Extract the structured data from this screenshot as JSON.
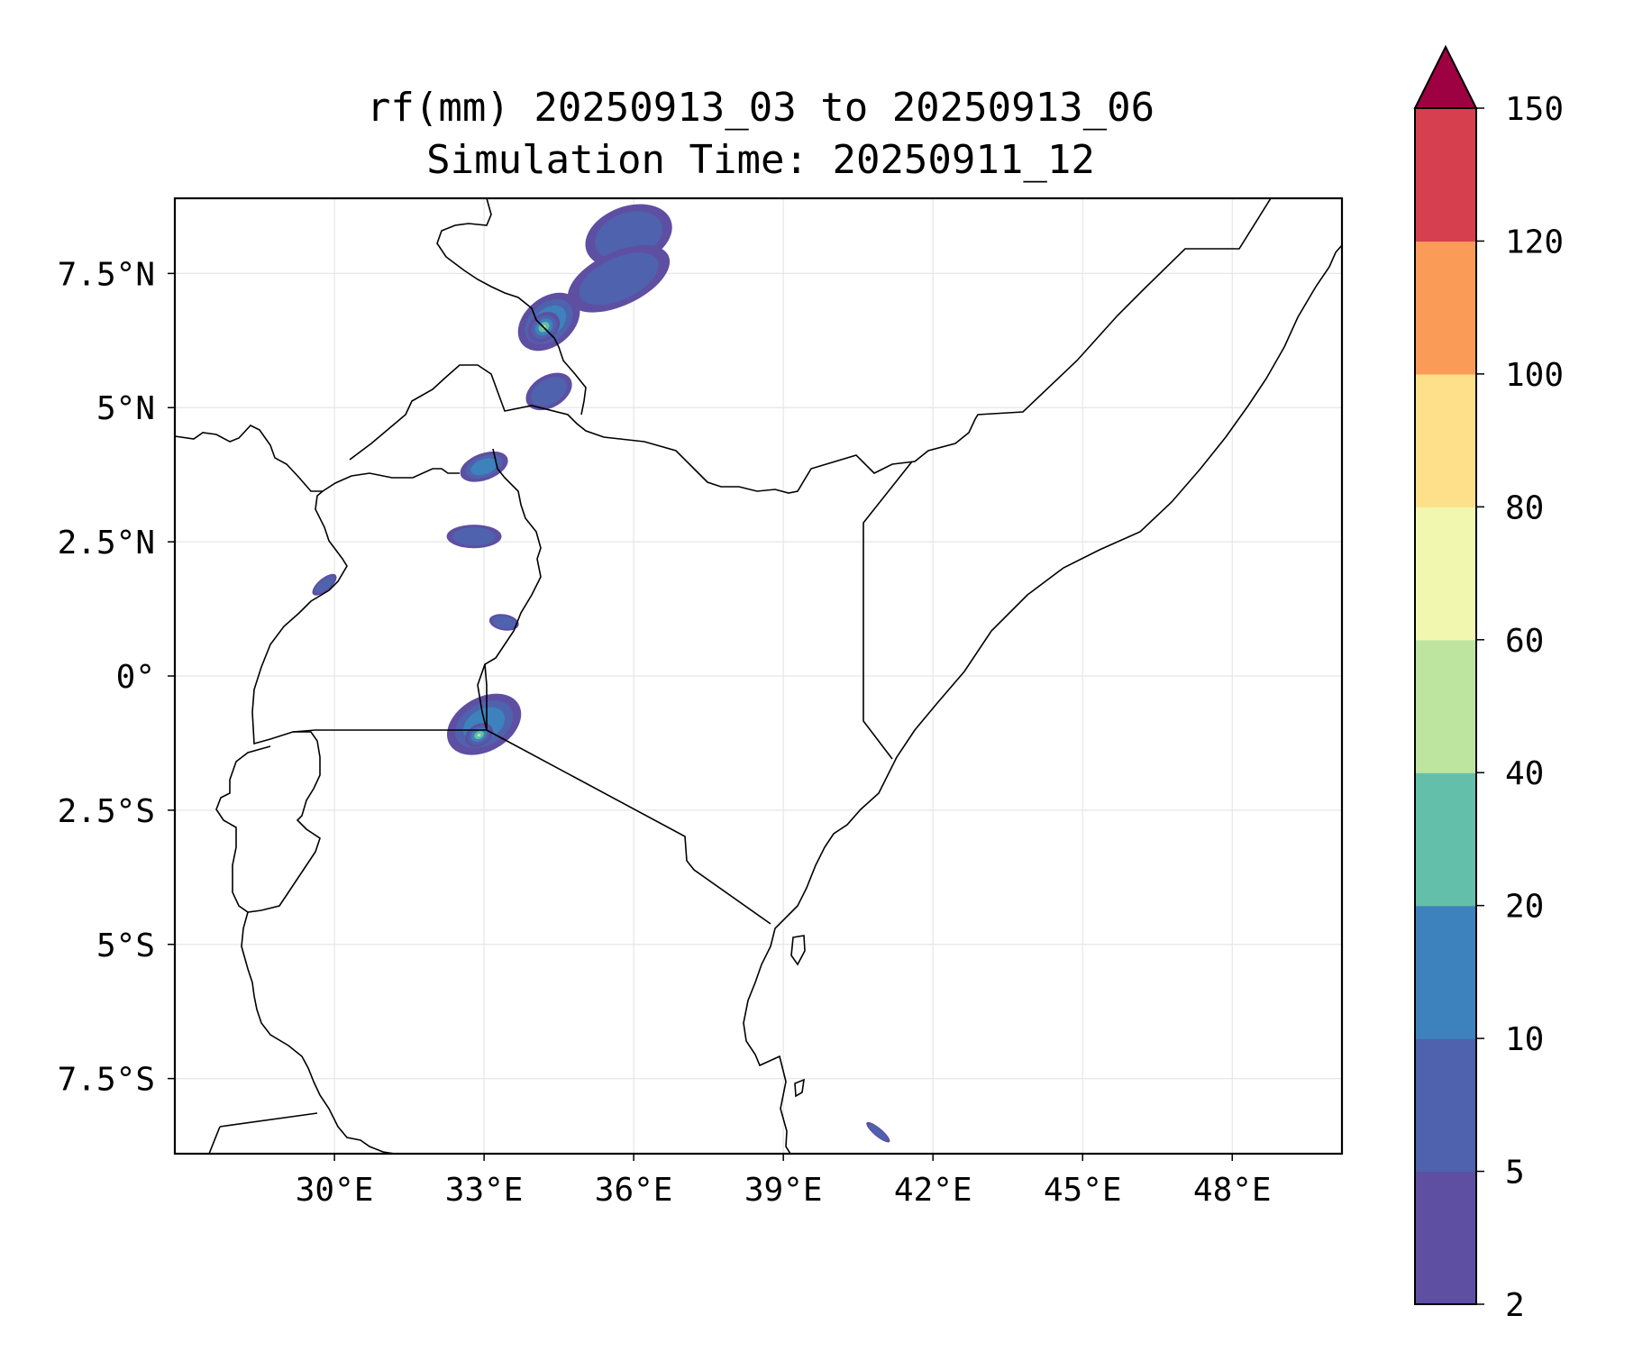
{
  "title": {
    "line1": "rf(mm) 20250913_03 to 20250913_06",
    "line2": "Simulation Time: 20250911_12"
  },
  "map": {
    "lon_range": [
      26.8,
      50.2
    ],
    "lat_range": [
      -8.9,
      8.9
    ],
    "lon_ticks": [
      {
        "value": 30,
        "label": "30°E"
      },
      {
        "value": 33,
        "label": "33°E"
      },
      {
        "value": 36,
        "label": "36°E"
      },
      {
        "value": 39,
        "label": "39°E"
      },
      {
        "value": 42,
        "label": "42°E"
      },
      {
        "value": 45,
        "label": "45°E"
      },
      {
        "value": 48,
        "label": "48°E"
      }
    ],
    "lat_ticks": [
      {
        "value": 7.5,
        "label": "7.5°N"
      },
      {
        "value": 5,
        "label": "5°N"
      },
      {
        "value": 2.5,
        "label": "2.5°N"
      },
      {
        "value": 0,
        "label": "0°"
      },
      {
        "value": -2.5,
        "label": "2.5°S"
      },
      {
        "value": -5,
        "label": "5°S"
      },
      {
        "value": -7.5,
        "label": "7.5°S"
      }
    ],
    "gridlines": true,
    "feature_color": "#000000",
    "rain_cells": [
      {
        "lon": 35.9,
        "lat": 8.2,
        "rx": 0.9,
        "ry": 0.55,
        "rot": -20,
        "level": 1
      },
      {
        "lon": 35.7,
        "lat": 7.4,
        "rx": 1.1,
        "ry": 0.5,
        "rot": -25,
        "level": 1
      },
      {
        "lon": 34.3,
        "lat": 6.6,
        "rx": 0.7,
        "ry": 0.45,
        "rot": -40,
        "level": 2
      },
      {
        "lon": 34.2,
        "lat": 6.5,
        "rx": 0.35,
        "ry": 0.25,
        "rot": -40,
        "level": 4
      },
      {
        "lon": 34.3,
        "lat": 5.3,
        "rx": 0.5,
        "ry": 0.3,
        "rot": -30,
        "level": 1
      },
      {
        "lon": 33.0,
        "lat": 3.9,
        "rx": 0.5,
        "ry": 0.25,
        "rot": -20,
        "level": 2
      },
      {
        "lon": 32.8,
        "lat": 2.6,
        "rx": 0.55,
        "ry": 0.22,
        "rot": 0,
        "level": 1
      },
      {
        "lon": 33.4,
        "lat": 1.0,
        "rx": 0.3,
        "ry": 0.15,
        "rot": 10,
        "level": 1
      },
      {
        "lon": 33.0,
        "lat": -0.9,
        "rx": 0.8,
        "ry": 0.5,
        "rot": -30,
        "level": 2
      },
      {
        "lon": 32.9,
        "lat": -1.1,
        "rx": 0.3,
        "ry": 0.2,
        "rot": -30,
        "level": 4
      },
      {
        "lon": 29.8,
        "lat": 1.7,
        "rx": 0.3,
        "ry": 0.12,
        "rot": -40,
        "level": 1
      },
      {
        "lon": 40.9,
        "lat": -8.5,
        "rx": 0.3,
        "ry": 0.08,
        "rot": 40,
        "level": 1
      }
    ]
  },
  "colorbar": {
    "tick_labels": [
      "2",
      "5",
      "10",
      "20",
      "40",
      "60",
      "80",
      "100",
      "120",
      "150"
    ],
    "colors": [
      "#5e4fa2",
      "#4e62ad",
      "#3d82bc",
      "#64bfaa",
      "#bee5a0",
      "#f2f7b0",
      "#fee08b",
      "#fa9c58",
      "#d6404e"
    ],
    "extend_color": "#9e0142"
  }
}
